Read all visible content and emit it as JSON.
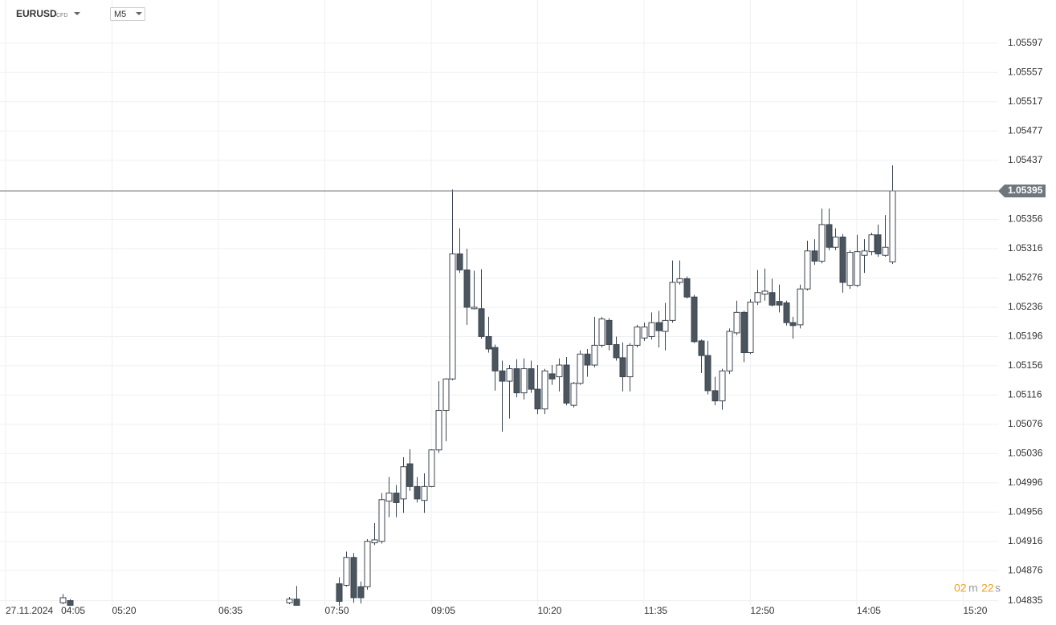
{
  "chart_data": {
    "type": "candlestick",
    "symbol": "EURUSD",
    "symbol_type": "CFD",
    "timeframe": "M5",
    "date_label": "27.11.2024",
    "x": [
      "04:45",
      "04:50",
      "07:25",
      "07:30",
      "08:00",
      "08:05",
      "08:10",
      "08:15",
      "08:20",
      "08:25",
      "08:30",
      "08:35",
      "08:40",
      "08:45",
      "08:50",
      "08:55",
      "09:00",
      "09:05",
      "09:10",
      "09:15",
      "09:20",
      "09:25",
      "09:30",
      "09:35",
      "09:40",
      "09:45",
      "09:50",
      "09:55",
      "10:00",
      "10:05",
      "10:10",
      "10:15",
      "10:20",
      "10:25",
      "10:30",
      "10:35",
      "10:40",
      "10:45",
      "10:50",
      "10:55",
      "11:00",
      "11:05",
      "11:10",
      "11:15",
      "11:20",
      "11:25",
      "11:30",
      "11:35",
      "11:40",
      "11:45",
      "11:50",
      "11:55",
      "12:00",
      "12:05",
      "12:10",
      "12:15",
      "12:20",
      "12:25",
      "12:30",
      "12:35",
      "12:40",
      "12:45",
      "12:50",
      "12:55",
      "13:00",
      "13:05",
      "13:10",
      "13:15",
      "13:20",
      "13:25",
      "13:30",
      "13:35",
      "13:40",
      "13:45",
      "13:50",
      "13:55",
      "14:00",
      "14:05",
      "14:10",
      "14:15",
      "14:20",
      "14:25",
      "14:30"
    ],
    "open": [
      1.04832,
      1.04835,
      1.04832,
      1.04837,
      1.04858,
      1.04856,
      1.04894,
      1.04854,
      1.04854,
      1.04914,
      1.04916,
      1.04971,
      1.04982,
      1.04974,
      1.05022,
      1.04991,
      1.04972,
      1.04991,
      1.05041,
      1.05095,
      1.05138,
      1.05309,
      1.05287,
      1.05234,
      1.05234,
      1.05196,
      1.05181,
      1.05149,
      1.05135,
      1.05152,
      1.05119,
      1.05152,
      1.05124,
      1.05097,
      1.05145,
      1.05141,
      1.05157,
      1.05102,
      1.05132,
      1.05172,
      1.05157,
      1.05184,
      1.05218,
      1.05185,
      1.05167,
      1.05141,
      1.05184,
      1.05194,
      1.05196,
      1.05215,
      1.05203,
      1.05218,
      1.0527,
      1.05275,
      1.0525,
      1.0519,
      1.0517,
      1.05122,
      1.05108,
      1.05149,
      1.05201,
      1.05229,
      1.05174,
      1.05243,
      1.05254,
      1.05256,
      1.05244,
      1.05242,
      1.05215,
      1.05212,
      1.05261,
      1.05313,
      1.05299,
      1.05349,
      1.05318,
      1.05332,
      1.05266,
      1.05266,
      1.05307,
      1.05312,
      1.05335,
      1.05307,
      1.05298
    ],
    "high": [
      1.04844,
      1.04837,
      1.0484,
      1.04855,
      1.04867,
      1.04902,
      1.049,
      1.04861,
      1.04919,
      1.04941,
      1.04982,
      1.05004,
      1.04993,
      1.05031,
      1.05042,
      1.05004,
      1.05009,
      1.05042,
      1.05135,
      1.05139,
      1.05397,
      1.05344,
      1.05316,
      1.05286,
      1.05288,
      1.05223,
      1.05185,
      1.05163,
      1.05157,
      1.05165,
      1.05166,
      1.05163,
      1.05157,
      1.05152,
      1.05157,
      1.05166,
      1.05168,
      1.05134,
      1.05177,
      1.05179,
      1.05223,
      1.05223,
      1.05221,
      1.05196,
      1.05188,
      1.05187,
      1.05212,
      1.05215,
      1.05229,
      1.05231,
      1.05242,
      1.053,
      1.053,
      1.05278,
      1.05253,
      1.05192,
      1.0519,
      1.05141,
      1.05152,
      1.05207,
      1.05245,
      1.05231,
      1.05247,
      1.05287,
      1.05289,
      1.05275,
      1.05267,
      1.05245,
      1.05223,
      1.05267,
      1.05327,
      1.05329,
      1.05371,
      1.05371,
      1.05344,
      1.05336,
      1.05314,
      1.05335,
      1.05329,
      1.05338,
      1.05349,
      1.05362,
      1.0543
    ],
    "low": [
      1.0483,
      1.04827,
      1.0483,
      1.04827,
      1.04828,
      1.04854,
      1.04832,
      1.04831,
      1.0485,
      1.04911,
      1.04913,
      1.04949,
      1.04949,
      1.04955,
      1.04985,
      1.04969,
      1.04955,
      1.0499,
      1.05037,
      1.05053,
      1.05136,
      1.05283,
      1.05212,
      1.05233,
      1.05193,
      1.05174,
      1.05122,
      1.05066,
      1.05084,
      1.05113,
      1.0511,
      1.05119,
      1.0509,
      1.0509,
      1.0513,
      1.05121,
      1.05102,
      1.05099,
      1.0513,
      1.05141,
      1.05154,
      1.05181,
      1.05177,
      1.05163,
      1.05121,
      1.05121,
      1.05181,
      1.0519,
      1.05192,
      1.05181,
      1.05177,
      1.05215,
      1.05267,
      1.05248,
      1.05187,
      1.05146,
      1.05117,
      1.05102,
      1.05096,
      1.05145,
      1.05198,
      1.05161,
      1.05172,
      1.05239,
      1.05245,
      1.05237,
      1.05229,
      1.05211,
      1.05193,
      1.05207,
      1.05259,
      1.05294,
      1.05296,
      1.05314,
      1.05314,
      1.05256,
      1.05261,
      1.05264,
      1.05283,
      1.05307,
      1.05305,
      1.05305,
      1.05295
    ],
    "close": [
      1.04839,
      1.04828,
      1.04837,
      1.04828,
      1.04834,
      1.04894,
      1.04839,
      1.04839,
      1.04916,
      1.04918,
      1.04973,
      1.04982,
      1.04969,
      1.05018,
      1.04991,
      1.04974,
      1.04991,
      1.05041,
      1.05095,
      1.05138,
      1.05309,
      1.05287,
      1.05236,
      1.05236,
      1.05196,
      1.05179,
      1.05149,
      1.05135,
      1.05152,
      1.05119,
      1.05152,
      1.05124,
      1.05097,
      1.05149,
      1.05138,
      1.05157,
      1.05105,
      1.05132,
      1.05172,
      1.05157,
      1.05184,
      1.0522,
      1.05185,
      1.05167,
      1.05141,
      1.05184,
      1.05209,
      1.05209,
      1.05215,
      1.05204,
      1.05218,
      1.0527,
      1.05275,
      1.0525,
      1.05189,
      1.0517,
      1.05122,
      1.05108,
      1.05149,
      1.05203,
      1.05229,
      1.05174,
      1.05243,
      1.05256,
      1.05258,
      1.05239,
      1.05239,
      1.05215,
      1.05211,
      1.05261,
      1.05313,
      1.05299,
      1.05349,
      1.05318,
      1.05332,
      1.0527,
      1.05311,
      1.05312,
      1.05313,
      1.05335,
      1.05309,
      1.05318,
      1.05395
    ],
    "up_color": "#ffffff",
    "down_color": "#4b555e",
    "outline_color": "#3c4650",
    "current_price": 1.05395,
    "current_price_color": "#6f777d",
    "countdown": {
      "minutes": "02",
      "minutes_unit": "m",
      "seconds": "22",
      "seconds_unit": "s"
    },
    "xlim": [
      "04:01",
      "15:43"
    ],
    "xticks": [
      "04:05",
      "05:20",
      "06:35",
      "07:50",
      "09:05",
      "10:20",
      "11:35",
      "12:50",
      "14:05",
      "15:20"
    ],
    "ylim": [
      1.04828,
      1.05656
    ],
    "yticks": [
      1.05597,
      1.05557,
      1.05517,
      1.05477,
      1.05437,
      1.05356,
      1.05316,
      1.05276,
      1.05236,
      1.05196,
      1.05156,
      1.05116,
      1.05076,
      1.05036,
      1.04996,
      1.04956,
      1.04916,
      1.04876,
      1.04835
    ],
    "grid": true
  }
}
